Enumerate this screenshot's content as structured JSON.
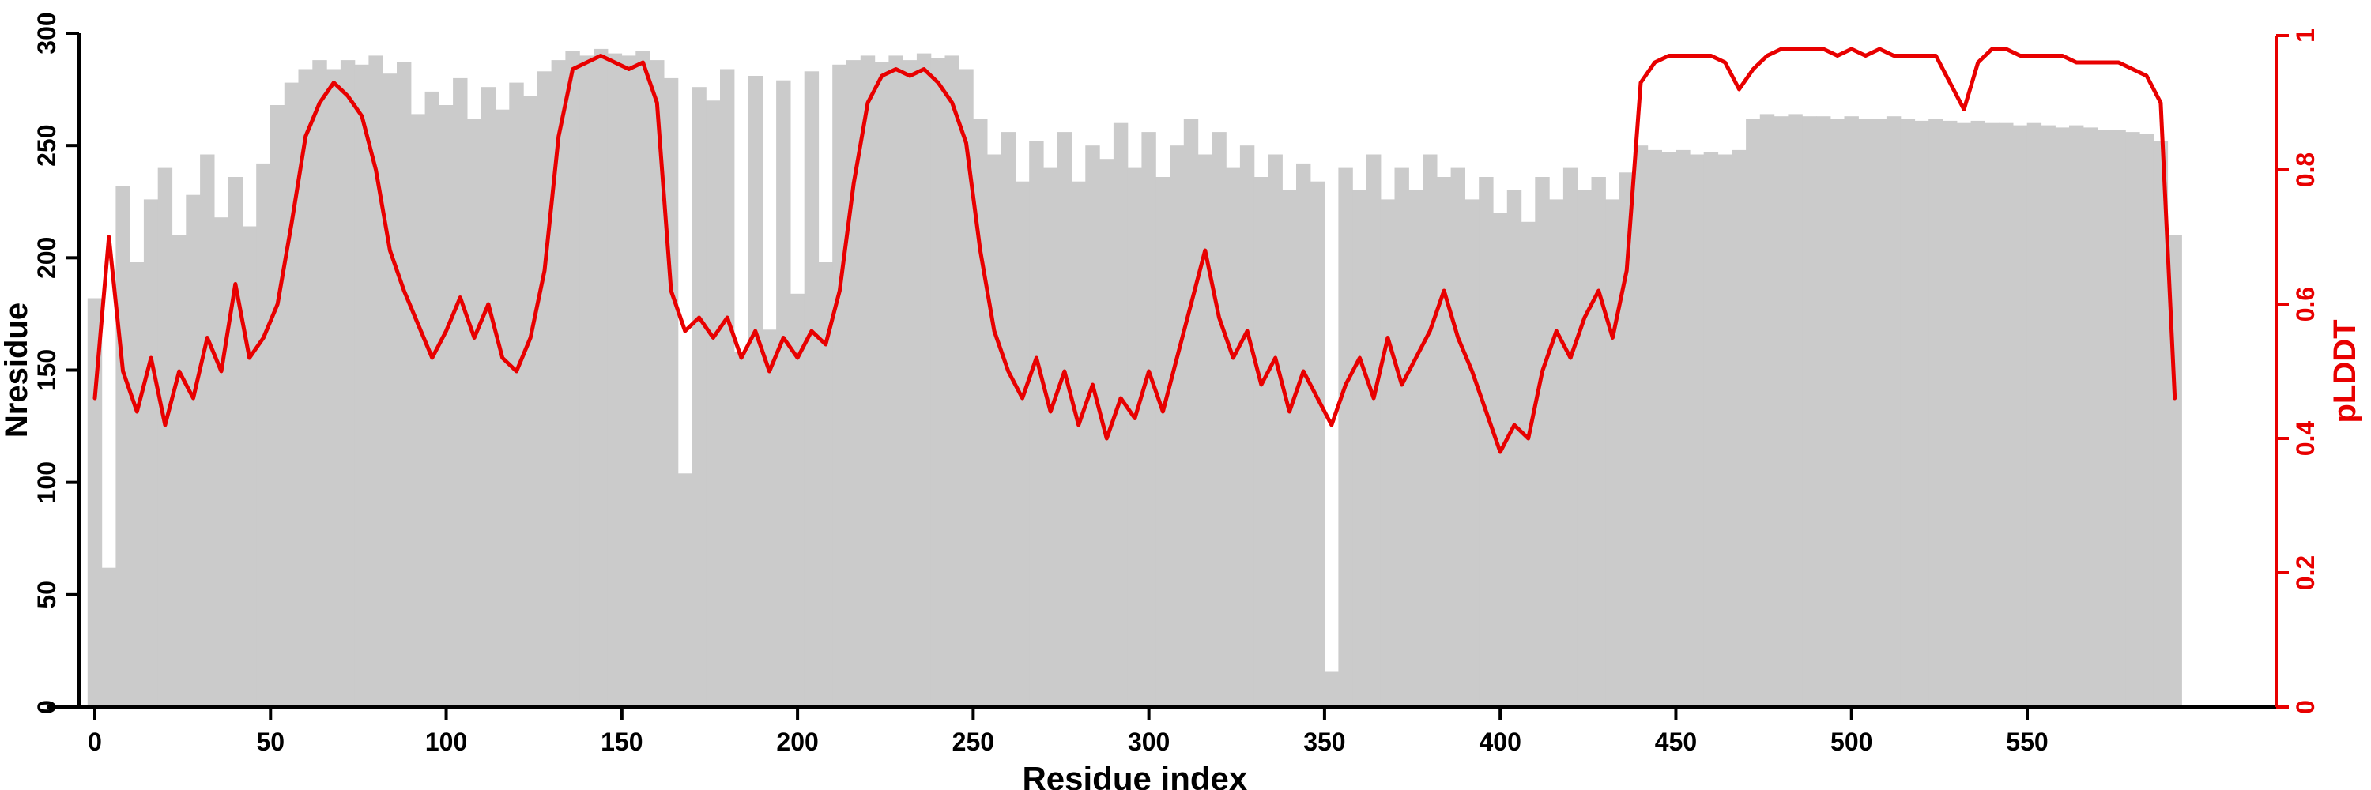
{
  "figure": {
    "description": "Per-residue plot of Nresidue (gray bars, left axis) and pLDDT (red line, right axis) versus residue index"
  },
  "chart_data": {
    "type": "bar",
    "title": "",
    "xlabel": "Residue index",
    "x_start": 0,
    "x_step": 4,
    "xlim": [
      0,
      600
    ],
    "x_ticks": [
      0,
      50,
      100,
      150,
      200,
      250,
      300,
      350,
      400,
      450,
      500,
      550
    ],
    "y_left": {
      "label": "Nresidue",
      "lim": [
        0,
        300
      ],
      "ticks": [
        0,
        50,
        100,
        150,
        200,
        250,
        300
      ],
      "color": "#000000"
    },
    "y_right": {
      "label": "pLDDT",
      "lim": [
        0,
        1
      ],
      "ticks": [
        0,
        0.2,
        0.4,
        0.6,
        0.8,
        1
      ],
      "color": "#e80000"
    },
    "colors": {
      "bar": "#cbcbcb",
      "line": "#e80000",
      "axis": "#000000",
      "background": "#ffffff"
    },
    "legend": "none",
    "grid": false,
    "series": [
      {
        "name": "Nresidue",
        "kind": "bar",
        "axis": "left",
        "values": [
          182,
          62,
          232,
          198,
          226,
          240,
          210,
          228,
          246,
          218,
          236,
          214,
          242,
          268,
          278,
          284,
          288,
          284,
          288,
          286,
          290,
          282,
          287,
          264,
          274,
          268,
          280,
          262,
          276,
          266,
          278,
          272,
          283,
          288,
          292,
          290,
          293,
          291,
          290,
          292,
          288,
          280,
          104,
          276,
          270,
          284,
          158,
          281,
          168,
          279,
          184,
          283,
          198,
          286,
          288,
          290,
          287,
          290,
          288,
          291,
          289,
          290,
          284,
          262,
          246,
          256,
          234,
          252,
          240,
          256,
          234,
          250,
          244,
          260,
          240,
          256,
          236,
          250,
          262,
          246,
          256,
          240,
          250,
          236,
          246,
          230,
          242,
          234,
          16,
          240,
          230,
          246,
          226,
          240,
          230,
          246,
          236,
          240,
          226,
          236,
          220,
          230,
          216,
          236,
          226,
          240,
          230,
          236,
          226,
          238,
          250,
          248,
          247,
          248,
          246,
          247,
          246,
          248,
          262,
          264,
          263,
          264,
          263,
          263,
          262,
          263,
          262,
          262,
          263,
          262,
          261,
          262,
          261,
          260,
          261,
          260,
          260,
          259,
          260,
          259,
          258,
          259,
          258,
          257,
          257,
          256,
          255,
          252,
          210
        ]
      },
      {
        "name": "pLDDT",
        "kind": "line",
        "axis": "right",
        "values": [
          0.46,
          0.7,
          0.5,
          0.44,
          0.52,
          0.42,
          0.5,
          0.46,
          0.55,
          0.5,
          0.63,
          0.52,
          0.55,
          0.6,
          0.72,
          0.85,
          0.9,
          0.93,
          0.91,
          0.88,
          0.8,
          0.68,
          0.62,
          0.57,
          0.52,
          0.56,
          0.61,
          0.55,
          0.6,
          0.52,
          0.5,
          0.55,
          0.65,
          0.85,
          0.95,
          0.96,
          0.97,
          0.96,
          0.95,
          0.96,
          0.9,
          0.62,
          0.56,
          0.58,
          0.55,
          0.58,
          0.52,
          0.56,
          0.5,
          0.55,
          0.52,
          0.56,
          0.54,
          0.62,
          0.78,
          0.9,
          0.94,
          0.95,
          0.94,
          0.95,
          0.93,
          0.9,
          0.84,
          0.68,
          0.56,
          0.5,
          0.46,
          0.52,
          0.44,
          0.5,
          0.42,
          0.48,
          0.4,
          0.46,
          0.43,
          0.5,
          0.44,
          0.52,
          0.6,
          0.68,
          0.58,
          0.52,
          0.56,
          0.48,
          0.52,
          0.44,
          0.5,
          0.46,
          0.42,
          0.48,
          0.52,
          0.46,
          0.55,
          0.48,
          0.52,
          0.56,
          0.62,
          0.55,
          0.5,
          0.44,
          0.38,
          0.42,
          0.4,
          0.5,
          0.56,
          0.52,
          0.58,
          0.62,
          0.55,
          0.65,
          0.93,
          0.96,
          0.97,
          0.97,
          0.97,
          0.97,
          0.96,
          0.92,
          0.95,
          0.97,
          0.98,
          0.98,
          0.98,
          0.98,
          0.97,
          0.98,
          0.97,
          0.98,
          0.97,
          0.97,
          0.97,
          0.97,
          0.93,
          0.89,
          0.96,
          0.98,
          0.98,
          0.97,
          0.97,
          0.97,
          0.97,
          0.96,
          0.96,
          0.96,
          0.96,
          0.95,
          0.94,
          0.9,
          0.46
        ]
      }
    ]
  }
}
